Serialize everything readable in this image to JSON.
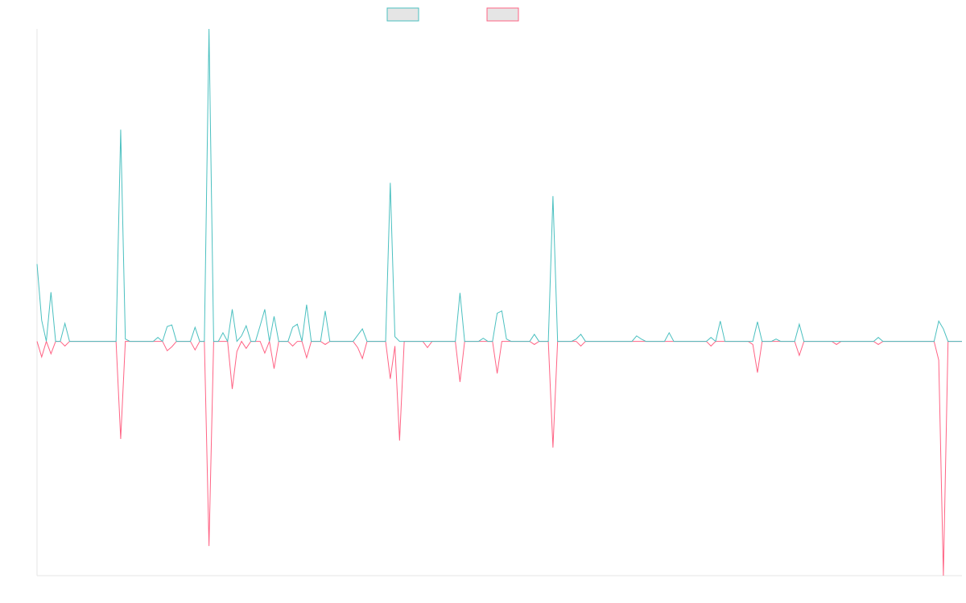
{
  "chart_data": {
    "type": "line",
    "ylim": [
      -3,
      4
    ],
    "series": [
      {
        "color": "#4bc0c0",
        "values": [
          0.99,
          0.27,
          0,
          0.63,
          0,
          0,
          0.23,
          0,
          0,
          0,
          0,
          0,
          0,
          0,
          0,
          0,
          0,
          0,
          2.71,
          0.03,
          0,
          0,
          0,
          0,
          0,
          0,
          0.05,
          0,
          0.19,
          0.21,
          0,
          0,
          0,
          0,
          0.18,
          0,
          0,
          4,
          0,
          0,
          0.11,
          0,
          0.41,
          0,
          0.07,
          0.2,
          0,
          0,
          0.2,
          0.41,
          0,
          0.32,
          0,
          0,
          0,
          0.18,
          0.22,
          0,
          0.47,
          0,
          0,
          0,
          0.39,
          0,
          0,
          0,
          0,
          0,
          0,
          0.08,
          0.16,
          0,
          0,
          0,
          0,
          0,
          2.03,
          0.06,
          0,
          0,
          0,
          0,
          0,
          0,
          0,
          0,
          0,
          0,
          0,
          0,
          0,
          0.62,
          0,
          0,
          0,
          0,
          0.04,
          0,
          0,
          0.36,
          0.39,
          0.03,
          0,
          0,
          0,
          0,
          0,
          0.09,
          0,
          0,
          0,
          1.86,
          0,
          0,
          0,
          0,
          0.03,
          0.09,
          0,
          0,
          0,
          0,
          0,
          0,
          0,
          0,
          0,
          0,
          0,
          0.07,
          0.03,
          0,
          0,
          0,
          0,
          0,
          0.11,
          0,
          0,
          0,
          0,
          0,
          0,
          0,
          0,
          0.05,
          0,
          0.26,
          0,
          0,
          0,
          0,
          0,
          0,
          0,
          0.25,
          0,
          0,
          0,
          0.03,
          0,
          0,
          0,
          0,
          0.22,
          0,
          0,
          0,
          0,
          0,
          0,
          0,
          0,
          0,
          0,
          0,
          0,
          0,
          0,
          0,
          0,
          0.05,
          0,
          0,
          0,
          0,
          0,
          0,
          0,
          0,
          0,
          0,
          0,
          0,
          0.26,
          0.16,
          0,
          0,
          0,
          0
        ]
      },
      {
        "color": "#ff6384",
        "values": [
          0,
          -0.2,
          0,
          -0.16,
          0,
          0,
          -0.06,
          0,
          0,
          0,
          0,
          0,
          0,
          0,
          0,
          0,
          0,
          0,
          -1.25,
          0,
          0,
          0,
          0,
          0,
          0,
          0,
          0,
          0,
          -0.12,
          -0.07,
          0,
          0,
          0,
          0,
          -0.11,
          0,
          0,
          -2.62,
          0,
          0,
          0,
          0,
          -0.61,
          -0.13,
          0,
          -0.09,
          0,
          0,
          0,
          -0.15,
          0,
          -0.35,
          0,
          0,
          0,
          -0.06,
          0,
          0,
          -0.21,
          0,
          0,
          0,
          -0.04,
          0,
          0,
          0,
          0,
          0,
          0,
          -0.08,
          -0.22,
          0,
          0,
          0,
          0,
          0,
          -0.48,
          -0.06,
          -1.27,
          0,
          0,
          0,
          0,
          0,
          -0.08,
          0,
          0,
          0,
          0,
          0,
          0,
          -0.52,
          0,
          0,
          0,
          0,
          0,
          0,
          0,
          -0.41,
          0,
          0,
          0,
          0,
          0,
          0,
          0,
          -0.04,
          0,
          0,
          0,
          -1.36,
          0,
          0,
          0,
          0,
          0,
          -0.06,
          0,
          0,
          0,
          0,
          0,
          0,
          0,
          0,
          0,
          0,
          0,
          0,
          0,
          0,
          0,
          0,
          0,
          0,
          0,
          0,
          0,
          0,
          0,
          0,
          0,
          0,
          0,
          -0.06,
          0,
          0,
          0,
          0,
          0,
          0,
          0,
          0,
          -0.04,
          -0.4,
          0,
          0,
          0,
          0,
          0,
          0,
          0,
          0,
          -0.18,
          0,
          0,
          0,
          0,
          0,
          0,
          0,
          -0.04,
          0,
          0,
          0,
          0,
          0,
          0,
          0,
          0,
          -0.04,
          0,
          0,
          0,
          0,
          0,
          0,
          0,
          0,
          0,
          0,
          0,
          0,
          -0.24,
          -3,
          0,
          0,
          0,
          0
        ]
      }
    ]
  }
}
